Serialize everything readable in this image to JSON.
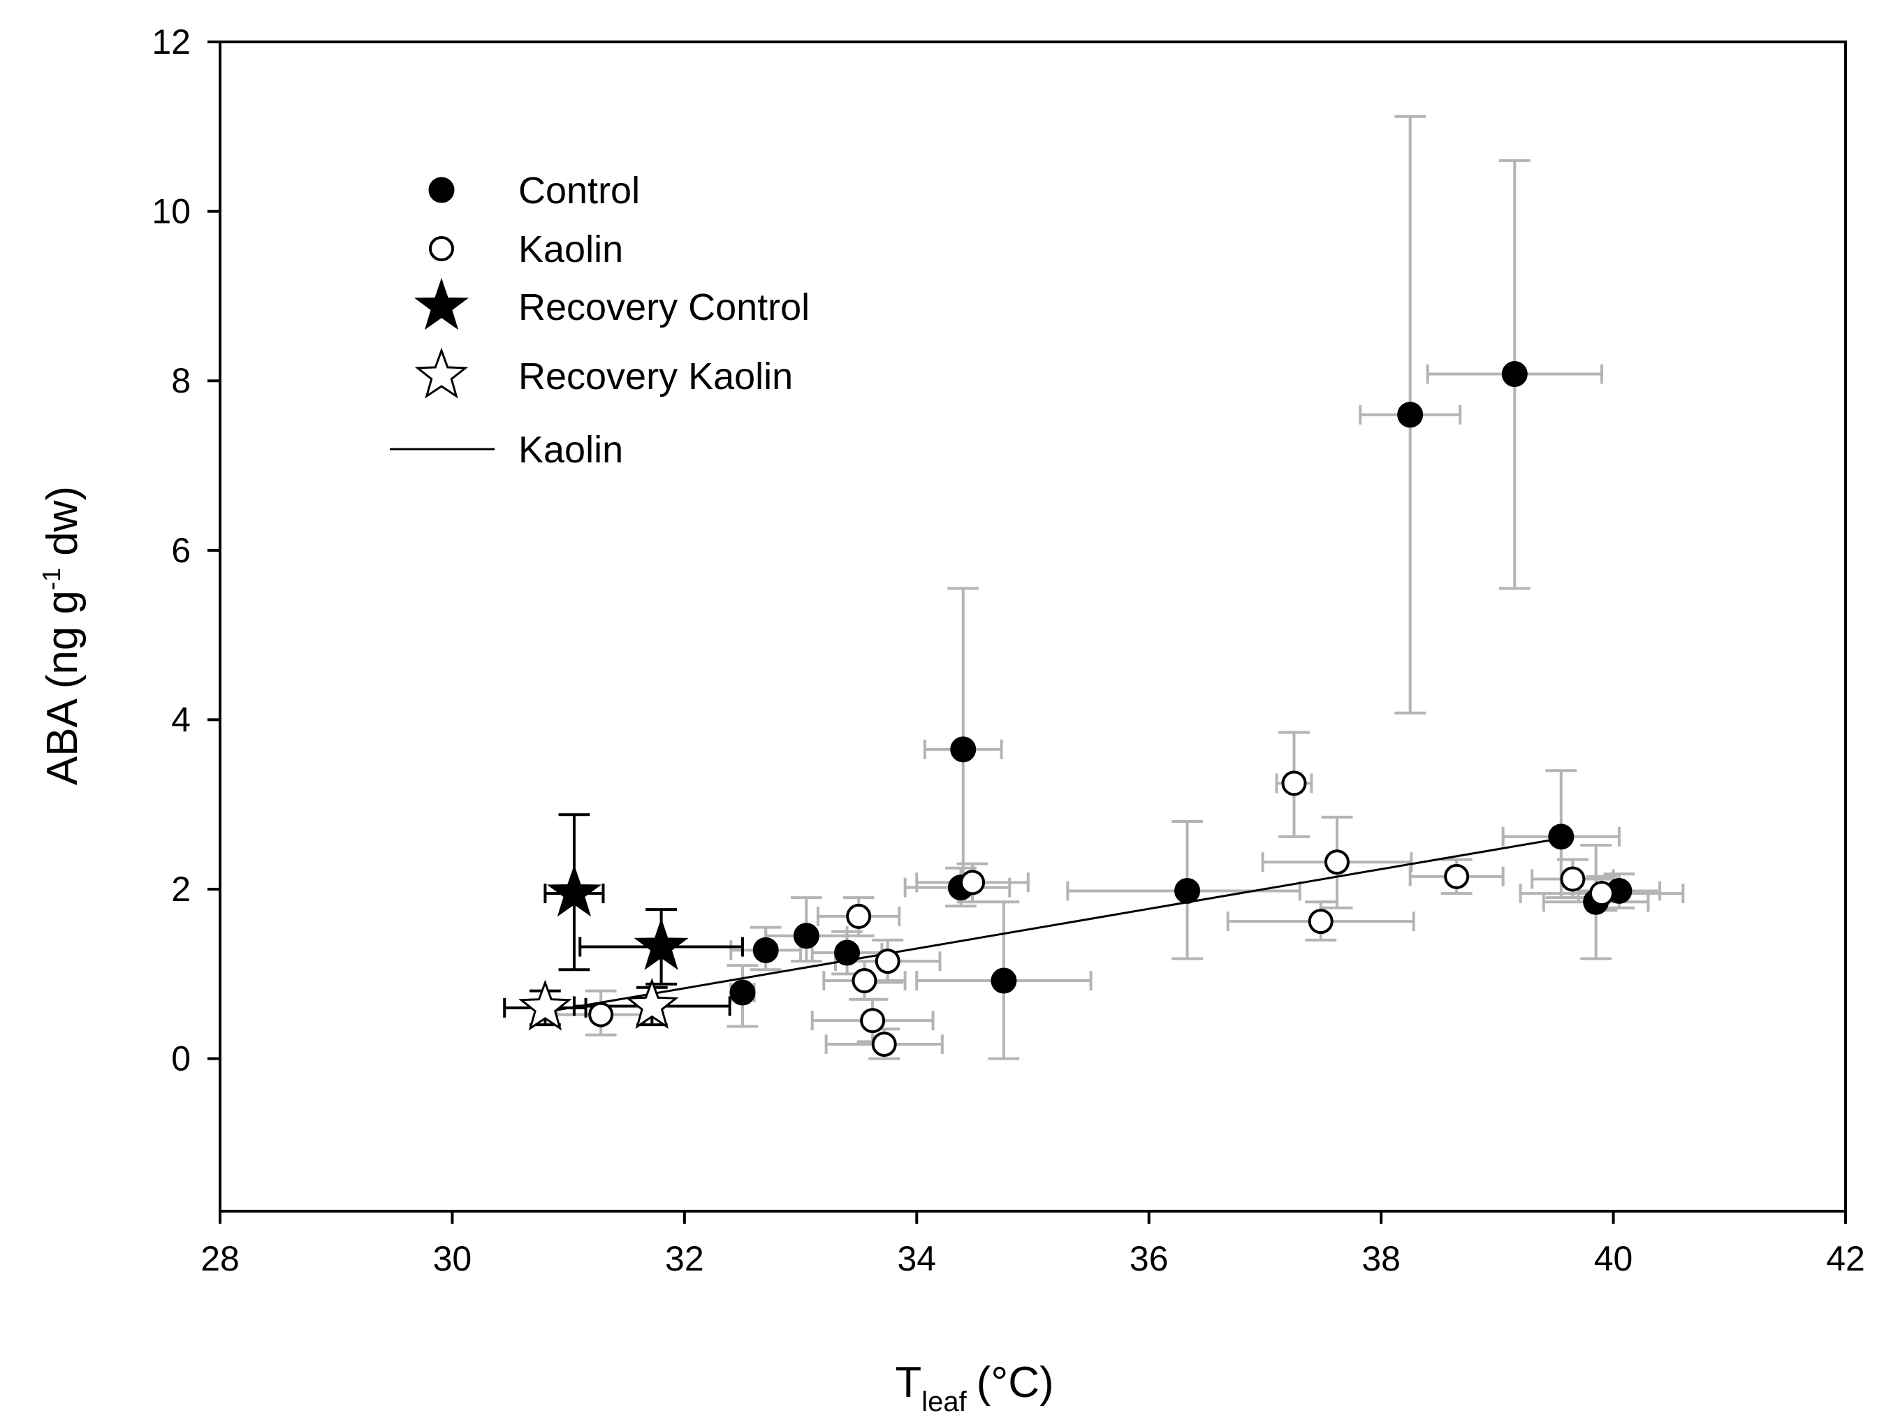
{
  "chart_data": {
    "type": "scatter",
    "title": "",
    "xlabel": {
      "main": "T",
      "sub": "leaf",
      "unit": "(°C)"
    },
    "ylabel": {
      "before": "ABA (ng g",
      "sup": "-1",
      "after": " dw)"
    },
    "xlim": [
      28,
      42
    ],
    "ylim": [
      -1.8,
      12
    ],
    "xticks": [
      28,
      30,
      32,
      34,
      36,
      38,
      40,
      42
    ],
    "yticks": [
      0,
      2,
      4,
      6,
      8,
      10,
      12
    ],
    "grid": false,
    "legend_position": "top-left",
    "legend": [
      {
        "label": "Control",
        "marker": "filled-circle"
      },
      {
        "label": "Kaolin",
        "marker": "open-circle"
      },
      {
        "label": "Recovery Control",
        "marker": "filled-star"
      },
      {
        "label": "Recovery Kaolin",
        "marker": "open-star"
      },
      {
        "label": "Kaolin",
        "marker": "line"
      }
    ],
    "colors": {
      "marker": "#000000",
      "errorbar": "#b4b4b4",
      "errorbar_recovery": "#000000",
      "fit_line": "#000000",
      "open_fill": "#ffffff"
    },
    "series": [
      {
        "name": "Control",
        "marker": "filled-circle",
        "points": [
          {
            "x": 32.5,
            "y": 0.78,
            "xerr": [
              32.4,
              32.6
            ],
            "yerr": [
              0.38,
              1.1
            ]
          },
          {
            "x": 32.7,
            "y": 1.28,
            "xerr": [
              32.4,
              33.0
            ],
            "yerr": [
              1.05,
              1.55
            ]
          },
          {
            "x": 33.05,
            "y": 1.45,
            "xerr": [
              32.7,
              33.4
            ],
            "yerr": [
              1.15,
              1.9
            ]
          },
          {
            "x": 33.4,
            "y": 1.25,
            "xerr": [
              33.1,
              33.7
            ],
            "yerr": [
              1.0,
              1.5
            ]
          },
          {
            "x": 34.4,
            "y": 3.65,
            "xerr": [
              34.07,
              34.73
            ],
            "yerr": [
              2.0,
              5.55
            ]
          },
          {
            "x": 34.38,
            "y": 2.02,
            "xerr": [
              33.9,
              34.8
            ],
            "yerr": [
              1.8,
              2.25
            ]
          },
          {
            "x": 34.75,
            "y": 0.92,
            "xerr": [
              34.0,
              35.5
            ],
            "yerr": [
              0.0,
              1.85
            ]
          },
          {
            "x": 36.33,
            "y": 1.98,
            "xerr": [
              35.3,
              37.3
            ],
            "yerr": [
              1.18,
              2.8
            ]
          },
          {
            "x": 38.25,
            "y": 7.6,
            "xerr": [
              37.82,
              38.68
            ],
            "yerr": [
              4.08,
              11.12
            ]
          },
          {
            "x": 39.15,
            "y": 8.08,
            "xerr": [
              38.4,
              39.9
            ],
            "yerr": [
              5.55,
              10.6
            ]
          },
          {
            "x": 39.55,
            "y": 2.62,
            "xerr": [
              39.05,
              40.05
            ],
            "yerr": [
              1.9,
              3.4
            ]
          },
          {
            "x": 39.85,
            "y": 1.85,
            "xerr": [
              39.4,
              40.3
            ],
            "yerr": [
              1.18,
              2.52
            ]
          },
          {
            "x": 40.05,
            "y": 1.98,
            "xerr": [
              39.7,
              40.4
            ],
            "yerr": [
              1.78,
              2.18
            ]
          }
        ]
      },
      {
        "name": "Kaolin",
        "marker": "open-circle",
        "points": [
          {
            "x": 31.28,
            "y": 0.52,
            "xerr": [
              30.9,
              31.66
            ],
            "yerr": [
              0.28,
              0.8
            ]
          },
          {
            "x": 33.5,
            "y": 1.68,
            "xerr": [
              33.15,
              33.85
            ],
            "yerr": [
              1.45,
              1.9
            ]
          },
          {
            "x": 33.55,
            "y": 0.92,
            "xerr": [
              33.2,
              33.9
            ],
            "yerr": [
              0.7,
              1.15
            ]
          },
          {
            "x": 33.62,
            "y": 0.45,
            "xerr": [
              33.1,
              34.14
            ],
            "yerr": [
              0.2,
              0.7
            ]
          },
          {
            "x": 33.72,
            "y": 0.17,
            "xerr": [
              33.22,
              34.22
            ],
            "yerr": [
              0.0,
              0.35
            ]
          },
          {
            "x": 33.75,
            "y": 1.15,
            "xerr": [
              33.3,
              34.2
            ],
            "yerr": [
              0.9,
              1.4
            ]
          },
          {
            "x": 34.48,
            "y": 2.08,
            "xerr": [
              34.0,
              34.96
            ],
            "yerr": [
              1.85,
              2.3
            ]
          },
          {
            "x": 37.25,
            "y": 3.25,
            "xerr": [
              37.1,
              37.4
            ],
            "yerr": [
              2.62,
              3.85
            ]
          },
          {
            "x": 37.48,
            "y": 1.62,
            "xerr": [
              36.68,
              38.28
            ],
            "yerr": [
              1.4,
              1.85
            ]
          },
          {
            "x": 37.62,
            "y": 2.32,
            "xerr": [
              36.98,
              38.26
            ],
            "yerr": [
              1.78,
              2.85
            ]
          },
          {
            "x": 38.65,
            "y": 2.15,
            "xerr": [
              38.25,
              39.05
            ],
            "yerr": [
              1.95,
              2.35
            ]
          },
          {
            "x": 39.65,
            "y": 2.12,
            "xerr": [
              39.3,
              40.0
            ],
            "yerr": [
              1.9,
              2.35
            ]
          },
          {
            "x": 39.9,
            "y": 1.95,
            "xerr": [
              39.2,
              40.6
            ],
            "yerr": [
              1.75,
              2.15
            ]
          }
        ]
      },
      {
        "name": "Recovery Control",
        "marker": "filled-star",
        "points": [
          {
            "x": 31.05,
            "y": 1.95,
            "xerr": [
              30.8,
              31.3
            ],
            "yerr": [
              1.05,
              2.88
            ]
          },
          {
            "x": 31.8,
            "y": 1.32,
            "xerr": [
              31.1,
              32.5
            ],
            "yerr": [
              0.88,
              1.76
            ]
          }
        ]
      },
      {
        "name": "Recovery Kaolin",
        "marker": "open-star",
        "points": [
          {
            "x": 30.8,
            "y": 0.6,
            "xerr": [
              30.45,
              31.15
            ],
            "yerr": [
              0.4,
              0.8
            ]
          },
          {
            "x": 31.72,
            "y": 0.62,
            "xerr": [
              31.05,
              32.39
            ],
            "yerr": [
              0.4,
              0.84
            ]
          }
        ]
      }
    ],
    "fit_line": {
      "name": "Kaolin",
      "x": [
        30.8,
        39.55
      ],
      "y": [
        0.55,
        2.6
      ]
    }
  }
}
